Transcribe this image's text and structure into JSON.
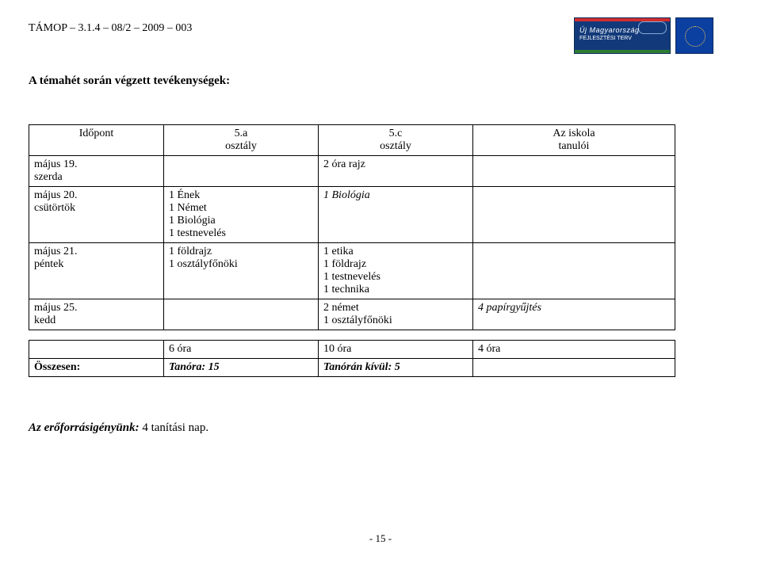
{
  "header": {
    "left": "TÁMOP – 3.1.4 – 08/2 – 2009 – 003",
    "umo_line1": "Új Magyarország",
    "umo_line2": "FEJLESZTÉSI TERV"
  },
  "title": "A témahét során végzett tevékenységek:",
  "table": {
    "head": {
      "c0": "Időpont",
      "c1": "5.a\nosztály",
      "c2": "5.c\nosztály",
      "c3": "Az iskola\ntanulói"
    },
    "rows": [
      {
        "c0": "május 19.\nszerda",
        "c1": "",
        "c2": "2 óra rajz",
        "c3": ""
      },
      {
        "c0": "május 20.\ncsütörtök",
        "c1": "1 Ének\n1 Német\n1 Biológia\n1 testnevelés",
        "c2": "1 Biológia",
        "c3": "",
        "c2_italic": true
      },
      {
        "c0": "május 21.\npéntek",
        "c1": "1 földrajz\n1 osztályfőnöki",
        "c2": "1 etika\n1 földrajz\n1 testnevelés\n1 technika",
        "c3": ""
      },
      {
        "c0": "május 25.\nkedd",
        "c1": "",
        "c2": "2 német\n1 osztályfőnöki",
        "c3": "4 papírgyűjtés",
        "c3_italic": true
      }
    ],
    "sum1": {
      "c0": "",
      "c1": "6 óra",
      "c2": "10 óra",
      "c3": "4 óra"
    },
    "sum2": {
      "c0": "Összesen:",
      "c1": "Tanóra: 15",
      "c2": "Tanórán kívül: 5",
      "c3": ""
    }
  },
  "resource": {
    "label": "Az erőforrásigényünk:",
    "value": "  4 tanítási nap."
  },
  "page_number": "- 15 -",
  "colors": {
    "text": "#000000",
    "bg": "#ffffff",
    "table_border": "#000000"
  }
}
